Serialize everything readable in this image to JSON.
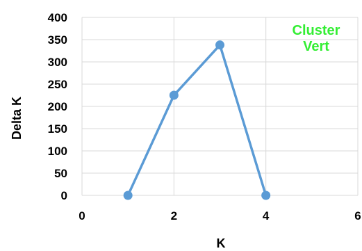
{
  "chart_data": {
    "type": "scatter",
    "xlabel": "K",
    "ylabel": "Delta K",
    "xlim": [
      0,
      6
    ],
    "ylim": [
      0,
      400
    ],
    "x_ticks": [
      "0",
      "2",
      "4",
      "6"
    ],
    "y_ticks": [
      "0",
      "50",
      "100",
      "150",
      "200",
      "250",
      "300",
      "350",
      "400"
    ],
    "grid": true,
    "series": [
      {
        "x": [
          1,
          2,
          3,
          4
        ],
        "y": [
          0,
          225,
          338,
          0
        ]
      }
    ],
    "annotation": {
      "lines": [
        "Cluster",
        "Vert"
      ]
    },
    "colors": {
      "series": "#5b9bd5",
      "grid": "#d9d9d9",
      "annotation": "#33ee33"
    }
  }
}
